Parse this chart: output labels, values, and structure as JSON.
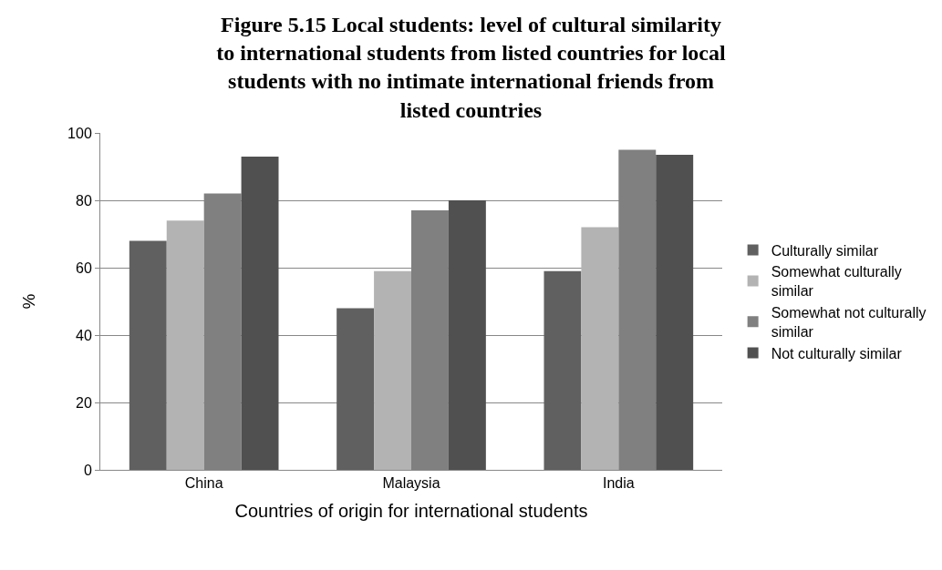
{
  "chart_data": {
    "type": "bar",
    "title": "Figure 5.15 Local students: level of cultural similarity to international students from listed countries for local students with no intimate international friends from listed countries",
    "xlabel": "Countries of origin for international students",
    "ylabel": "%",
    "categories": [
      "China",
      "Malaysia",
      "India"
    ],
    "series": [
      {
        "name": "Culturally similar",
        "color": "#606060",
        "values": [
          68,
          48,
          59
        ]
      },
      {
        "name": "Somewhat culturally similar",
        "color": "#b3b3b3",
        "values": [
          74,
          59,
          72
        ]
      },
      {
        "name": "Somewhat not culturally similar",
        "color": "#808080",
        "values": [
          82,
          77,
          95
        ]
      },
      {
        "name": "Not culturally similar",
        "color": "#505050",
        "values": [
          93,
          80,
          93.5
        ]
      }
    ],
    "ylim": [
      0,
      100
    ],
    "yticks": [
      0,
      20,
      40,
      60,
      80,
      100
    ],
    "grid": "y",
    "legend": "right"
  }
}
